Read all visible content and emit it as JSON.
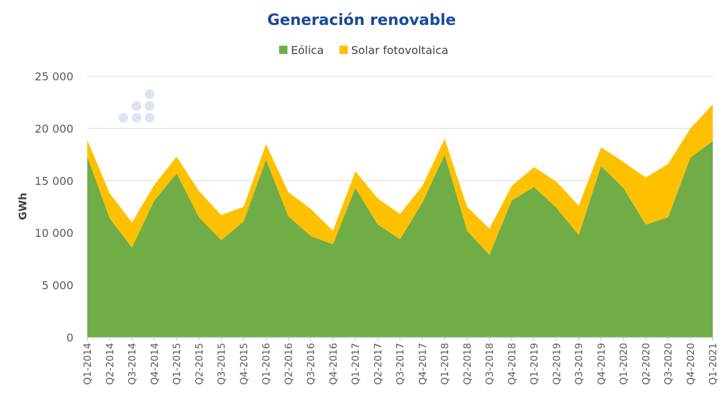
{
  "chart_data": {
    "type": "area",
    "title": "Generación renovable",
    "ylabel": "GWh",
    "xlabel": "",
    "ylim": [
      0,
      25000
    ],
    "yticks": [
      0,
      5000,
      10000,
      15000,
      20000,
      25000
    ],
    "ytick_labels": [
      "0",
      "5 000",
      "10 000",
      "15 000",
      "20 000",
      "25 000"
    ],
    "grid": true,
    "stacked": true,
    "legend_position": "top-center",
    "categories": [
      "Q1-2014",
      "Q2-2014",
      "Q3-2014",
      "Q4-2014",
      "Q1-2015",
      "Q2-2015",
      "Q3-2015",
      "Q4-2015",
      "Q1-2016",
      "Q2-2016",
      "Q3-2016",
      "Q4-2016",
      "Q1-2017",
      "Q2-2017",
      "Q3-2017",
      "Q4-2017",
      "Q1-2018",
      "Q2-2018",
      "Q3-2018",
      "Q4-2018",
      "Q1-2019",
      "Q2-2019",
      "Q3-2019",
      "Q4-2019",
      "Q1-2020",
      "Q2-2020",
      "Q3-2020",
      "Q4-2020",
      "Q1-2021"
    ],
    "series": [
      {
        "name": "Eólica",
        "color": "#70ad47",
        "values": [
          17300,
          11400,
          8600,
          13100,
          15700,
          11500,
          9300,
          11100,
          17000,
          11600,
          9700,
          8900,
          14300,
          10800,
          9400,
          12900,
          17500,
          10200,
          7900,
          13100,
          14400,
          12400,
          9800,
          16400,
          14300,
          10800,
          11500,
          17200,
          18800
        ]
      },
      {
        "name": "Solar fotovoltaica",
        "color": "#ffc000",
        "values": [
          1600,
          2400,
          2400,
          1500,
          1600,
          2500,
          2400,
          1400,
          1500,
          2300,
          2600,
          1300,
          1600,
          2500,
          2400,
          1600,
          1500,
          2300,
          2500,
          1400,
          1900,
          2500,
          2800,
          1800,
          2500,
          4500,
          5100,
          2800,
          3500
        ]
      }
    ]
  },
  "decor": {
    "dots_color": "#dde5f0"
  }
}
